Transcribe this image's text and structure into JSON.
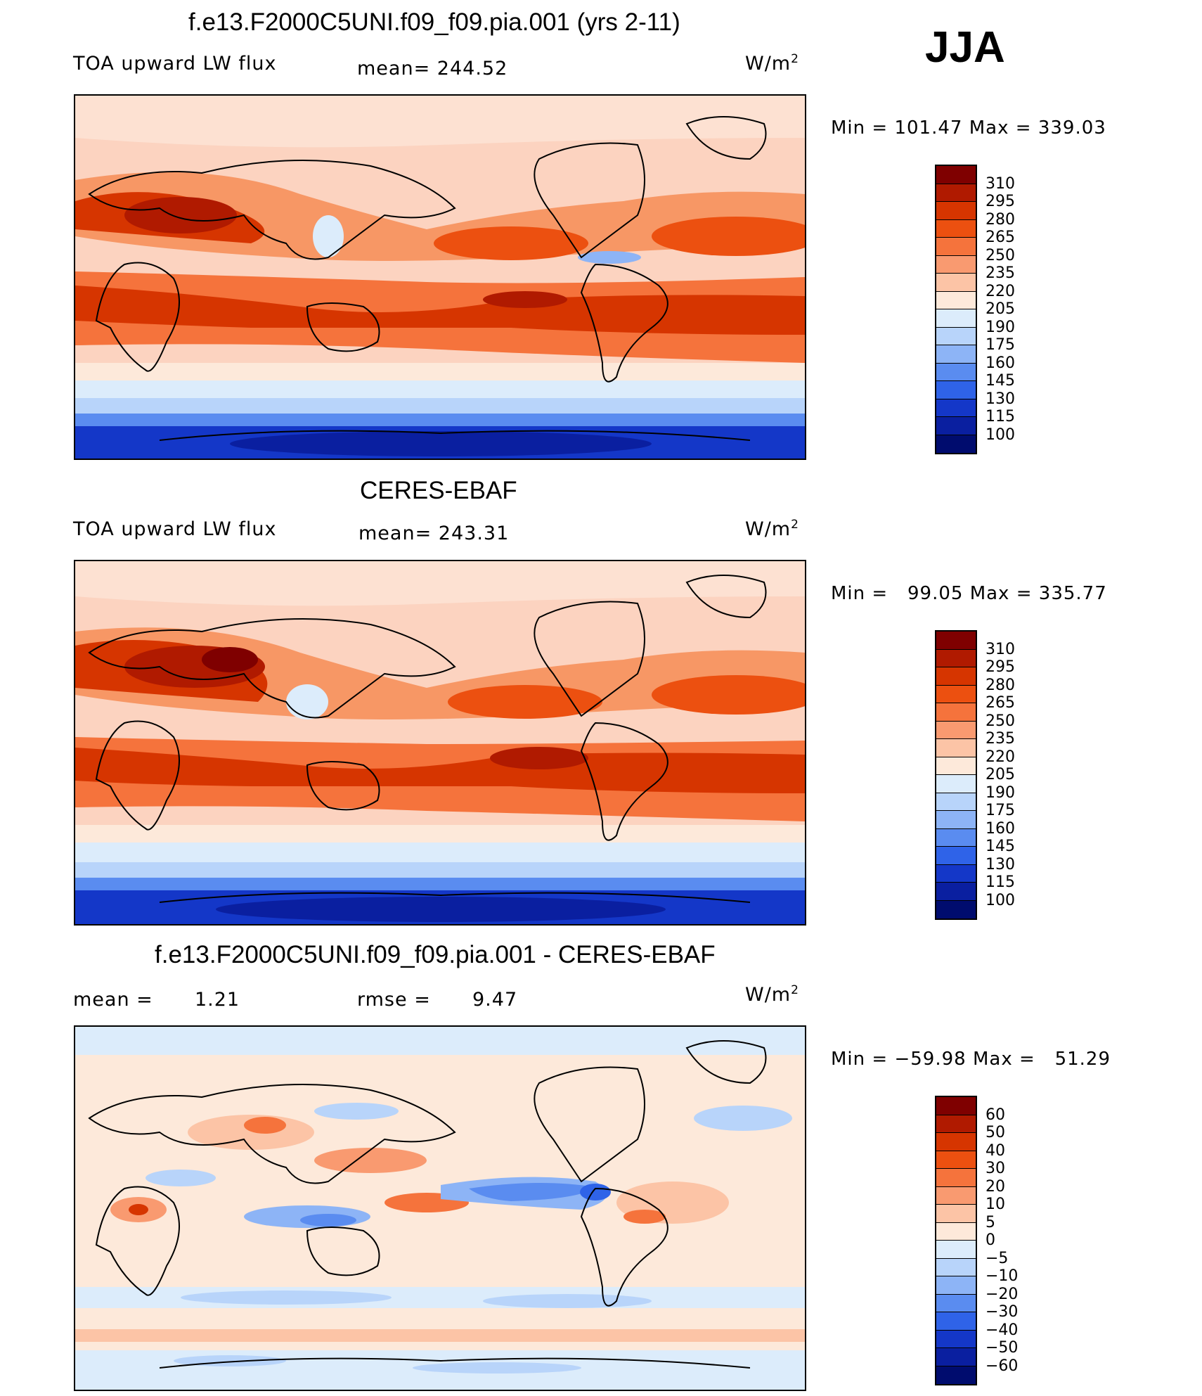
{
  "season": "JJA",
  "units_base": "W/m",
  "units_exp": "2",
  "panels": [
    {
      "title": "f.e13.F2000C5UNI.f09_f09.pia.001 (yrs 2-11)",
      "left_label": "TOA upward LW flux",
      "stat_label": "mean=",
      "stat_value": "244.52",
      "min_label": "Min",
      "min_value": "101.47",
      "max_label": "Max",
      "max_value": "339.03"
    },
    {
      "title": "CERES-EBAF",
      "left_label": "TOA upward LW flux",
      "stat_label": "mean=",
      "stat_value": "243.31",
      "min_label": "Min",
      "min_value": "99.05",
      "max_label": "Max",
      "max_value": "335.77"
    },
    {
      "title": "f.e13.F2000C5UNI.f09_f09.pia.001 - CERES-EBAF",
      "mean_label": "mean =",
      "mean_value": "1.21",
      "rmse_label": "rmse =",
      "rmse_value": "9.47",
      "min_label": "Min",
      "min_value": "−59.98",
      "max_label": "Max",
      "max_value": "51.29"
    }
  ],
  "colorbars": {
    "flux": {
      "labels": [
        "310",
        "295",
        "280",
        "265",
        "250",
        "235",
        "220",
        "205",
        "190",
        "175",
        "160",
        "145",
        "130",
        "115",
        "100"
      ],
      "colors": [
        "#7f0000",
        "#b01a00",
        "#d63500",
        "#ec5010",
        "#f5733c",
        "#f99a70",
        "#fcc4a6",
        "#fde9da",
        "#dcecfb",
        "#b8d4fa",
        "#8db4f6",
        "#5a8cf0",
        "#2f63e8",
        "#1437c8",
        "#0a1fa0",
        "#000c6e"
      ]
    },
    "diff": {
      "labels": [
        "60",
        "50",
        "40",
        "30",
        "20",
        "10",
        "5",
        "0",
        "−5",
        "−10",
        "−20",
        "−30",
        "−40",
        "−50",
        "−60"
      ],
      "colors": [
        "#7f0000",
        "#b01a00",
        "#d63500",
        "#ec5010",
        "#f5733c",
        "#f99a70",
        "#fcc4a6",
        "#fde9da",
        "#dcecfb",
        "#b8d4fa",
        "#8db4f6",
        "#5a8cf0",
        "#2f63e8",
        "#1437c8",
        "#0a1fa0",
        "#000c6e"
      ]
    }
  }
}
